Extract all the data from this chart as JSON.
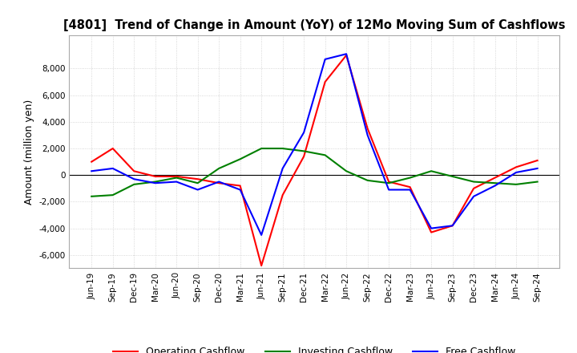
{
  "title": "[4801]  Trend of Change in Amount (YoY) of 12Mo Moving Sum of Cashflows",
  "ylabel": "Amount (million yen)",
  "background_color": "#ffffff",
  "grid_color": "#cccccc",
  "x_labels": [
    "Jun-19",
    "Sep-19",
    "Dec-19",
    "Mar-20",
    "Jun-20",
    "Sep-20",
    "Dec-20",
    "Mar-21",
    "Jun-21",
    "Sep-21",
    "Dec-21",
    "Mar-22",
    "Jun-22",
    "Sep-22",
    "Dec-22",
    "Mar-23",
    "Jun-23",
    "Sep-23",
    "Dec-23",
    "Mar-24",
    "Jun-24",
    "Sep-24"
  ],
  "operating_cashflow": [
    1000,
    2000,
    300,
    -100,
    -100,
    -300,
    -600,
    -800,
    -6800,
    -1500,
    1400,
    7000,
    9000,
    3500,
    -500,
    -900,
    -4300,
    -3800,
    -1000,
    -200,
    600,
    1100
  ],
  "investing_cashflow": [
    -1600,
    -1500,
    -700,
    -500,
    -200,
    -600,
    500,
    1200,
    2000,
    2000,
    1800,
    1500,
    300,
    -400,
    -600,
    -200,
    300,
    -100,
    -500,
    -600,
    -700,
    -500
  ],
  "free_cashflow": [
    300,
    500,
    -300,
    -600,
    -500,
    -1100,
    -500,
    -1100,
    -4500,
    500,
    3200,
    8700,
    9100,
    3000,
    -1100,
    -1100,
    -4000,
    -3800,
    -1600,
    -800,
    200,
    500
  ],
  "ylim": [
    -7000,
    10500
  ],
  "yticks": [
    -6000,
    -4000,
    -2000,
    0,
    2000,
    4000,
    6000,
    8000
  ],
  "line_colors": {
    "operating": "#ff0000",
    "investing": "#008000",
    "free": "#0000ff"
  }
}
